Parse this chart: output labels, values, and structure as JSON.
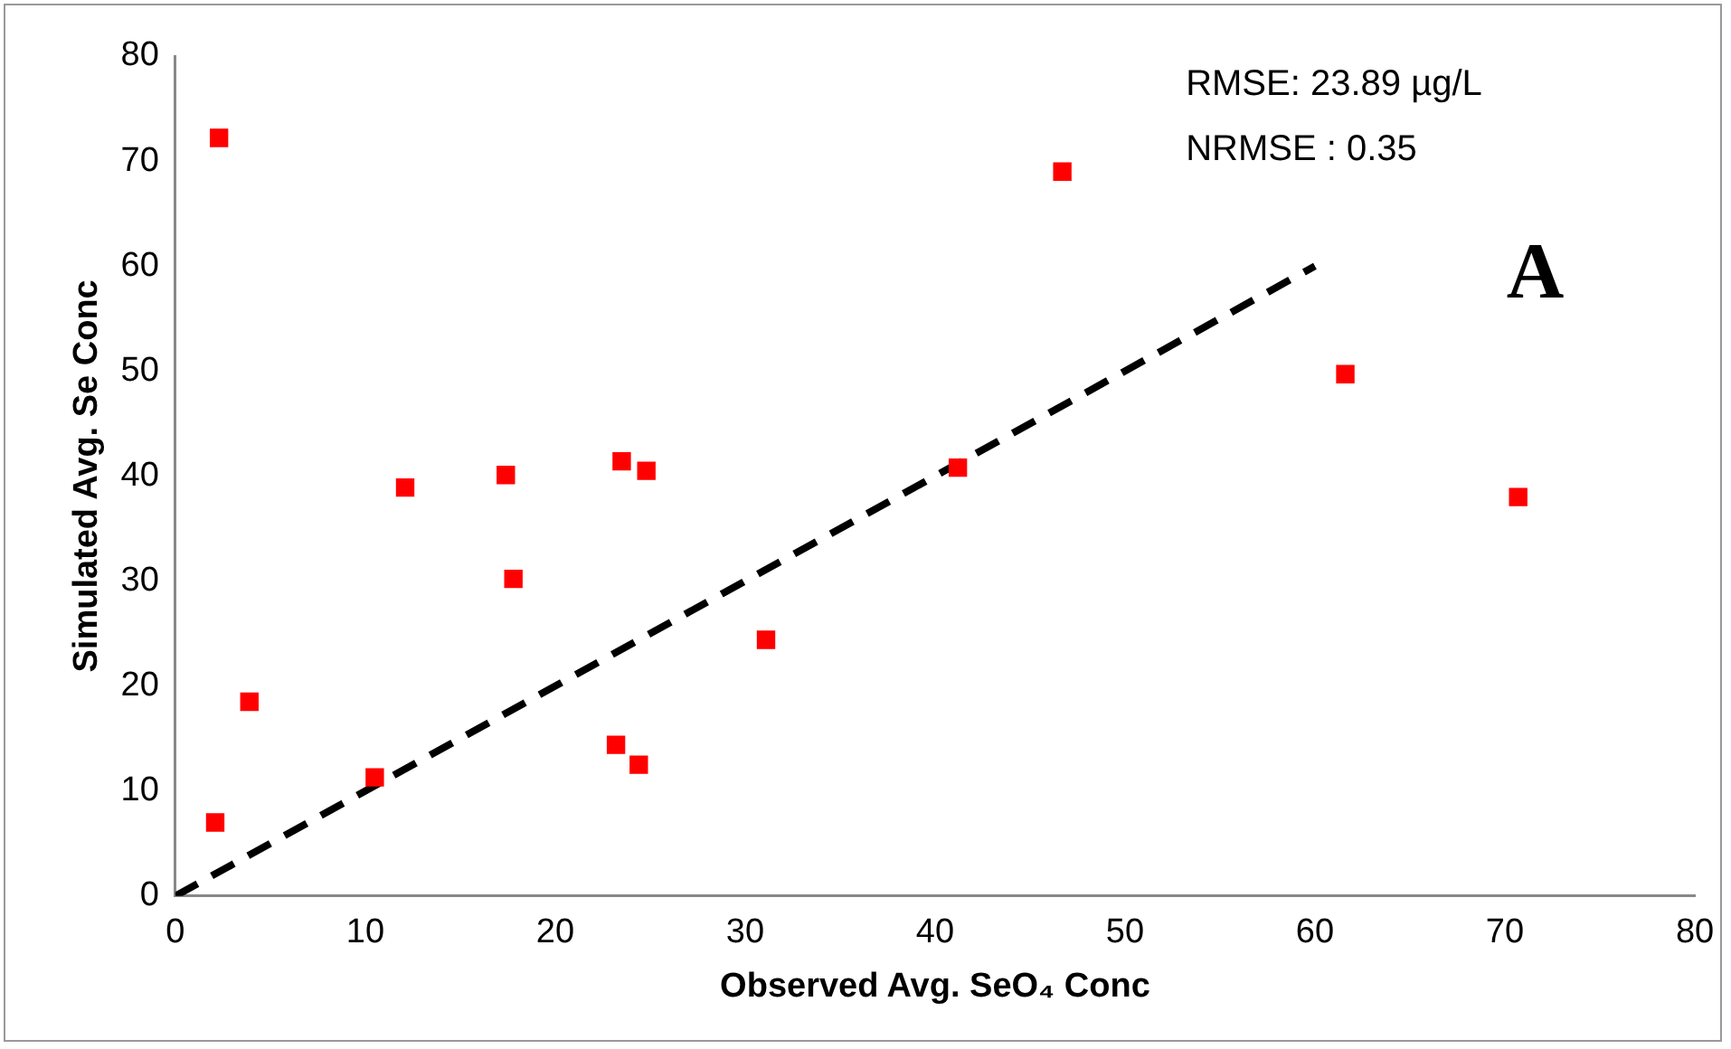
{
  "chart_data": {
    "type": "scatter",
    "xlabel": "Observed Avg. SeO₄ Conc",
    "ylabel": "Simulated Avg. Se Conc",
    "annotations": [
      "RMSE: 23.89 µg/L",
      "NRMSE : 0.35",
      "A"
    ],
    "xlim": [
      0,
      80
    ],
    "ylim": [
      0,
      80
    ],
    "xticks": [
      0,
      10,
      20,
      30,
      40,
      50,
      60,
      70,
      80
    ],
    "yticks": [
      0,
      10,
      20,
      30,
      40,
      50,
      60,
      70,
      80
    ],
    "grid": false,
    "legend": false,
    "series": [
      {
        "color": "#ff0000",
        "marker": "square",
        "x": [
          2.1,
          2.3,
          3.9,
          10.5,
          12.1,
          17.4,
          17.8,
          23.2,
          23.5,
          24.4,
          24.8,
          31.1,
          41.2,
          46.7,
          61.6,
          70.7
        ],
        "values": [
          7.0,
          72.2,
          18.5,
          11.3,
          38.9,
          40.1,
          30.2,
          14.4,
          41.4,
          12.5,
          40.5,
          24.4,
          40.8,
          69.0,
          49.7,
          38.0
        ]
      },
      {
        "type": "line",
        "color": "#000000",
        "marker": "none",
        "line_style": "dashed",
        "x": [
          0,
          60
        ],
        "values": [
          0,
          60
        ]
      }
    ]
  }
}
